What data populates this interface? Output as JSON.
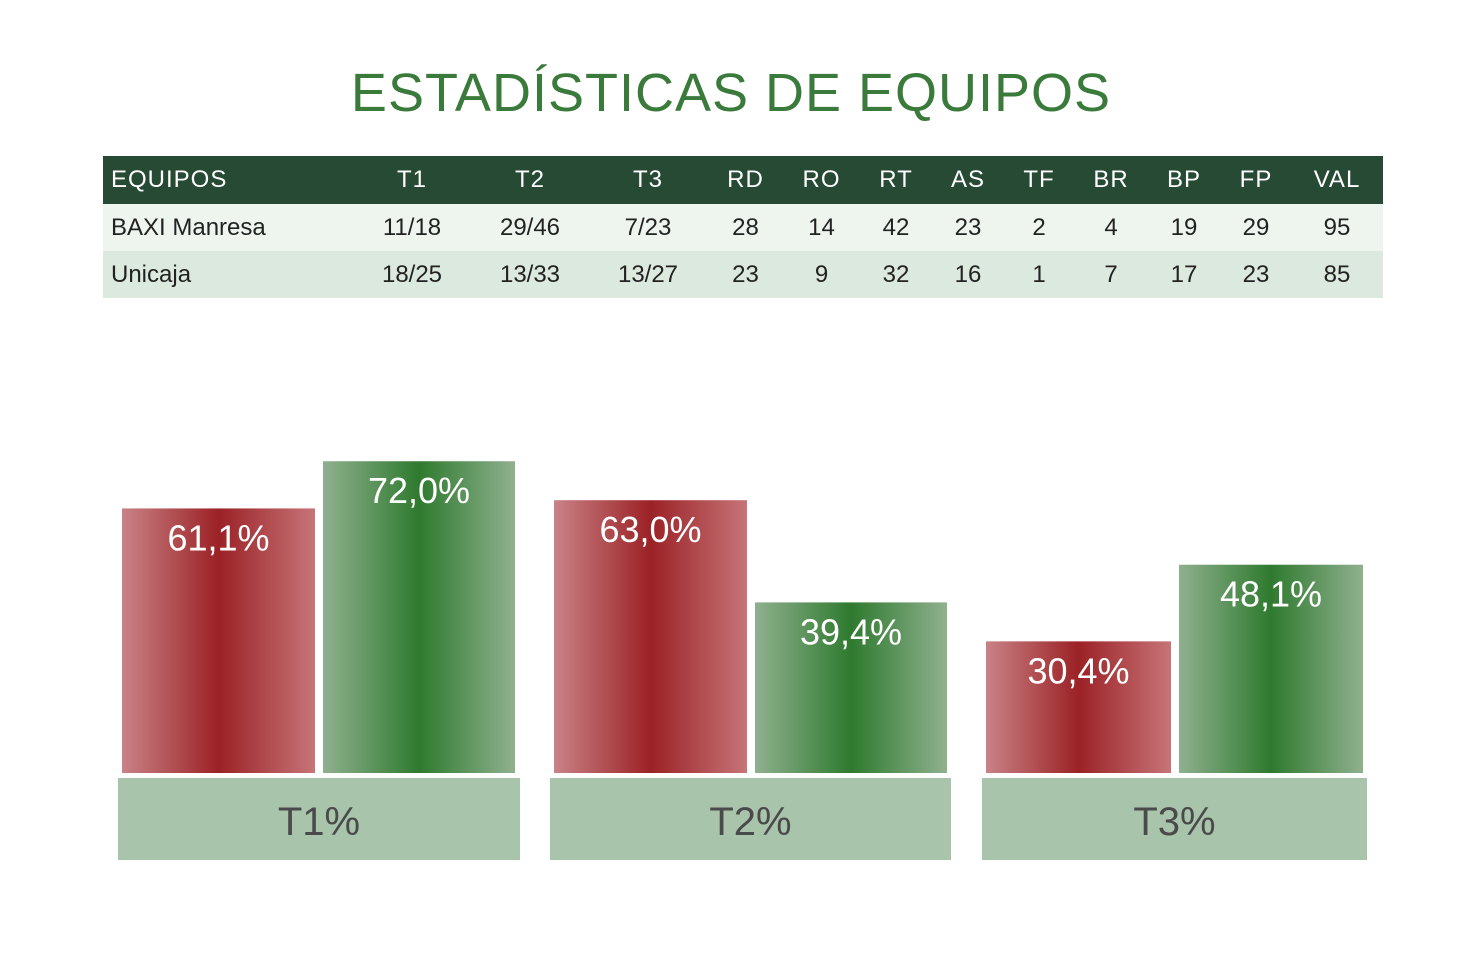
{
  "title": "ESTADÍSTICAS DE EQUIPOS",
  "colors": {
    "title": "#3a7a3a",
    "header_bg": "#264a33",
    "team1_red": "#9b2226",
    "team2_green": "#2f7a2f",
    "group_label_bg": "#a8c4ab"
  },
  "table": {
    "headers": [
      "EQUIPOS",
      "T1",
      "T2",
      "T3",
      "RD",
      "RO",
      "RT",
      "AS",
      "TF",
      "BR",
      "BP",
      "FP",
      "VAL"
    ],
    "rows": [
      [
        "BAXI Manresa",
        "11/18",
        "29/46",
        "7/23",
        "28",
        "14",
        "42",
        "23",
        "2",
        "4",
        "19",
        "29",
        "95"
      ],
      [
        "Unicaja",
        "18/25",
        "13/33",
        "13/27",
        "23",
        "9",
        "32",
        "16",
        "1",
        "7",
        "17",
        "23",
        "85"
      ]
    ]
  },
  "chart_data": {
    "type": "bar",
    "categories": [
      "T1%",
      "T2%",
      "T3%"
    ],
    "series": [
      {
        "values": [
          61.1,
          63.0,
          30.4
        ],
        "labels": [
          "61,1%",
          "63,0%",
          "30,4%"
        ]
      },
      {
        "values": [
          72.0,
          39.4,
          48.1
        ],
        "labels": [
          "72,0%",
          "39,4%",
          "48,1%"
        ]
      }
    ],
    "ylim": [
      0,
      100
    ],
    "grid": false,
    "legend": "none"
  }
}
